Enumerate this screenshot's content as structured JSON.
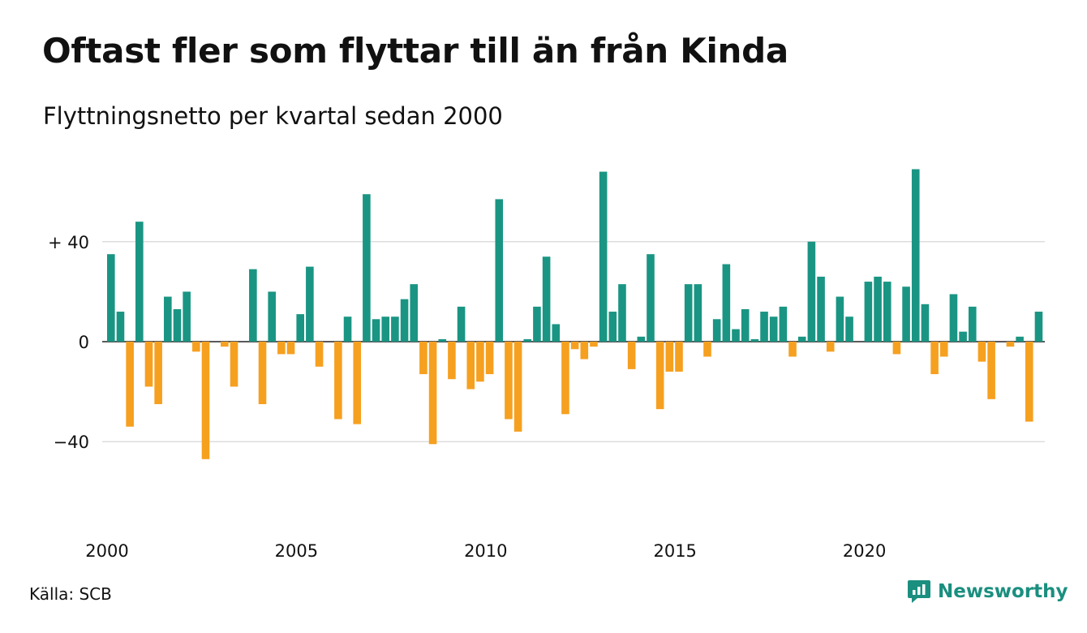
{
  "title": "Oftast fler som flyttar till än från Kinda",
  "subtitle": "Flyttningsnetto per kvartal sedan 2000",
  "source": "Källa: SCB",
  "brand": {
    "name": "Newsworthy",
    "icon": "newsworthy-chart-icon"
  },
  "colors": {
    "positive": "#1a9583",
    "negative": "#f6a020",
    "grid": "#dddddd",
    "axis": "#222222"
  },
  "chart_data": {
    "type": "bar",
    "title": "Oftast fler som flyttar till än från Kinda",
    "subtitle": "Flyttningsnetto per kvartal sedan 2000",
    "xlabel": "",
    "ylabel": "",
    "x_start": 2000,
    "periods_per_year": 4,
    "values": [
      35,
      12,
      -34,
      48,
      -18,
      -25,
      18,
      13,
      20,
      -4,
      -47,
      0,
      -2,
      -18,
      0,
      29,
      -25,
      20,
      -5,
      -5,
      11,
      30,
      -10,
      0,
      -31,
      10,
      -33,
      59,
      9,
      10,
      10,
      17,
      23,
      -13,
      -41,
      1,
      -15,
      14,
      -19,
      -16,
      -13,
      57,
      -31,
      -36,
      1,
      14,
      34,
      7,
      -29,
      -3,
      -7,
      -2,
      68,
      12,
      23,
      -11,
      2,
      35,
      -27,
      -12,
      -12,
      23,
      23,
      -6,
      9,
      31,
      5,
      13,
      1,
      12,
      10,
      14,
      -6,
      2,
      40,
      26,
      -4,
      18,
      10,
      0,
      24,
      26,
      24,
      -5,
      22,
      69,
      15,
      -13,
      -6,
      19,
      4,
      14,
      -8,
      -23,
      0,
      -2,
      2,
      -32,
      12
    ],
    "ylim": [
      -70,
      70
    ],
    "yticks": [
      {
        "value": 40,
        "label": "+ 40"
      },
      {
        "value": 0,
        "label": "0"
      },
      {
        "value": -40,
        "label": "−40"
      }
    ],
    "xticks": [
      {
        "year": 2000,
        "label": "2000"
      },
      {
        "year": 2005,
        "label": "2005"
      },
      {
        "year": 2010,
        "label": "2010"
      },
      {
        "year": 2015,
        "label": "2015"
      },
      {
        "year": 2020,
        "label": "2020"
      }
    ],
    "grid": true,
    "legend": "none"
  }
}
